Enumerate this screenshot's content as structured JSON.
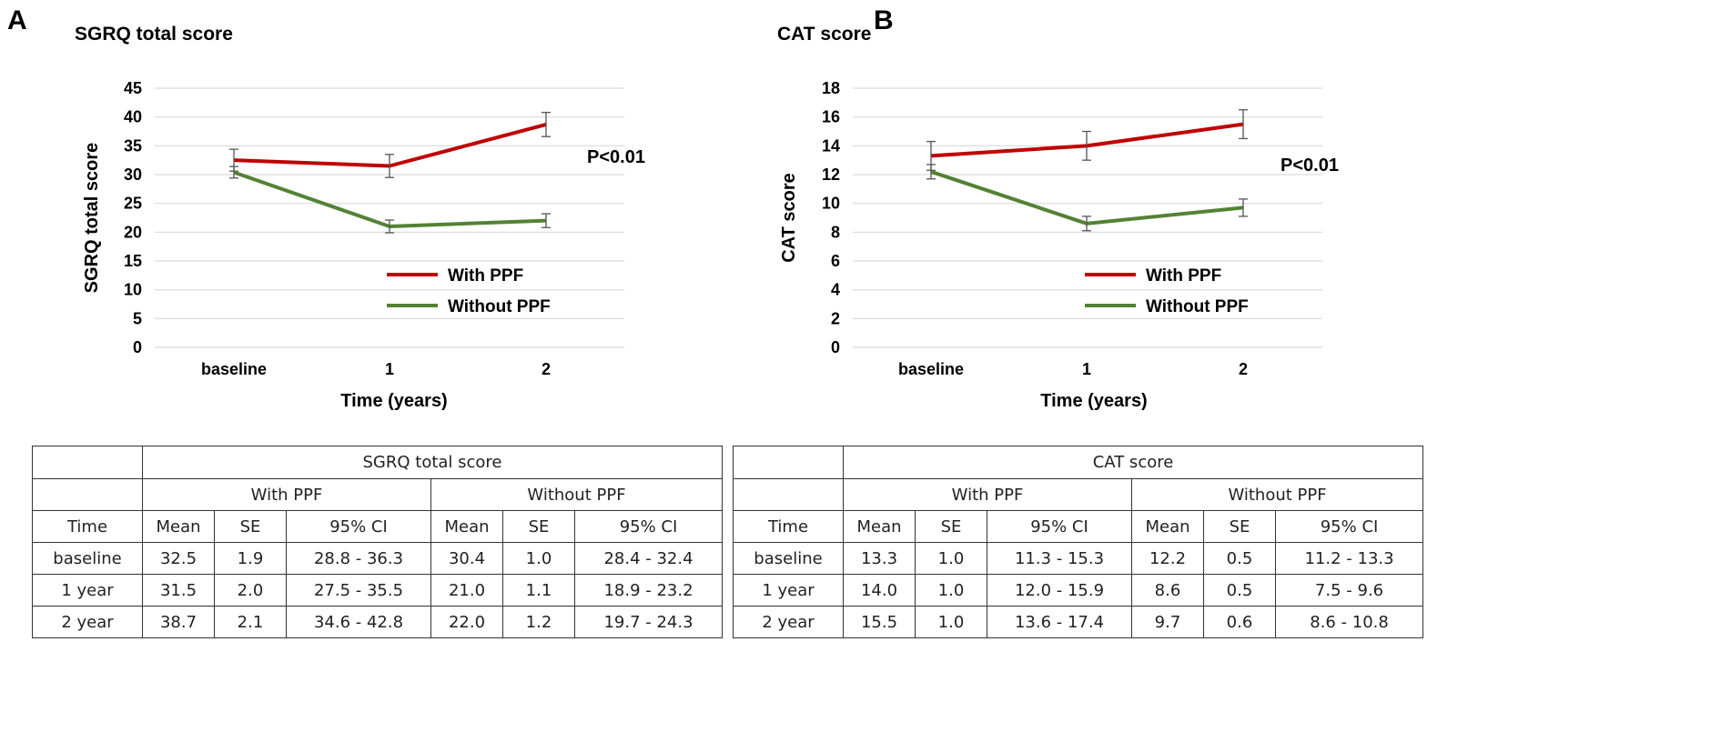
{
  "panels": [
    {
      "letter": "A",
      "title": "SGRQ total score",
      "p_value": "P<0.01",
      "chart_data": {
        "type": "line",
        "title": "SGRQ total score",
        "xlabel": "Time (years)",
        "ylabel": "SGRQ total score",
        "categories": [
          "baseline",
          "1",
          "2"
        ],
        "ylim": [
          0,
          45
        ],
        "yticks": [
          0,
          5,
          10,
          15,
          20,
          25,
          30,
          35,
          40,
          45
        ],
        "grid": true,
        "legend_position": "center-right",
        "annotation": "P<0.01",
        "series": [
          {
            "name": "With PPF",
            "color": "#C00000",
            "values": [
              32.5,
              31.5,
              38.7
            ],
            "se": [
              1.9,
              2.0,
              2.1
            ]
          },
          {
            "name": "Without PPF",
            "color": "#548235",
            "values": [
              30.4,
              21.0,
              22.0
            ],
            "se": [
              1.0,
              1.1,
              1.2
            ]
          }
        ]
      },
      "table": {
        "title": "SGRQ total score",
        "groups": [
          "With PPF",
          "Without PPF"
        ],
        "columns": [
          "Time",
          "Mean",
          "SE",
          "95% CI",
          "Mean",
          "SE",
          "95% CI"
        ],
        "rows": [
          [
            "baseline",
            "32.5",
            "1.9",
            "28.8 - 36.3",
            "30.4",
            "1.0",
            "28.4 - 32.4"
          ],
          [
            "1 year",
            "31.5",
            "2.0",
            "27.5 - 35.5",
            "21.0",
            "1.1",
            "18.9 - 23.2"
          ],
          [
            "2 year",
            "38.7",
            "2.1",
            "34.6 - 42.8",
            "22.0",
            "1.2",
            "19.7 - 24.3"
          ]
        ]
      }
    },
    {
      "letter": "B",
      "title": "CAT score",
      "p_value": "P<0.01",
      "chart_data": {
        "type": "line",
        "title": "CAT score",
        "xlabel": "Time (years)",
        "ylabel": "CAT score",
        "categories": [
          "baseline",
          "1",
          "2"
        ],
        "ylim": [
          0,
          18
        ],
        "yticks": [
          0,
          2,
          4,
          6,
          8,
          10,
          12,
          14,
          16,
          18
        ],
        "grid": true,
        "legend_position": "center-right",
        "annotation": "P<0.01",
        "series": [
          {
            "name": "With PPF",
            "color": "#C00000",
            "values": [
              13.3,
              14.0,
              15.5
            ],
            "se": [
              1.0,
              1.0,
              1.0
            ]
          },
          {
            "name": "Without PPF",
            "color": "#548235",
            "values": [
              12.2,
              8.6,
              9.7
            ],
            "se": [
              0.5,
              0.5,
              0.6
            ]
          }
        ]
      },
      "table": {
        "title": "CAT score",
        "groups": [
          "With PPF",
          "Without PPF"
        ],
        "columns": [
          "Time",
          "Mean",
          "SE",
          "95% CI",
          "Mean",
          "SE",
          "95% CI"
        ],
        "rows": [
          [
            "baseline",
            "13.3",
            "1.0",
            "11.3 - 15.3",
            "12.2",
            "0.5",
            "11.2 - 13.3"
          ],
          [
            "1 year",
            "14.0",
            "1.0",
            "12.0 - 15.9",
            "8.6",
            "0.5",
            "7.5 - 9.6"
          ],
          [
            "2 year",
            "15.5",
            "1.0",
            "13.6 - 17.4",
            "9.7",
            "0.6",
            "8.6 - 10.8"
          ]
        ]
      }
    }
  ]
}
